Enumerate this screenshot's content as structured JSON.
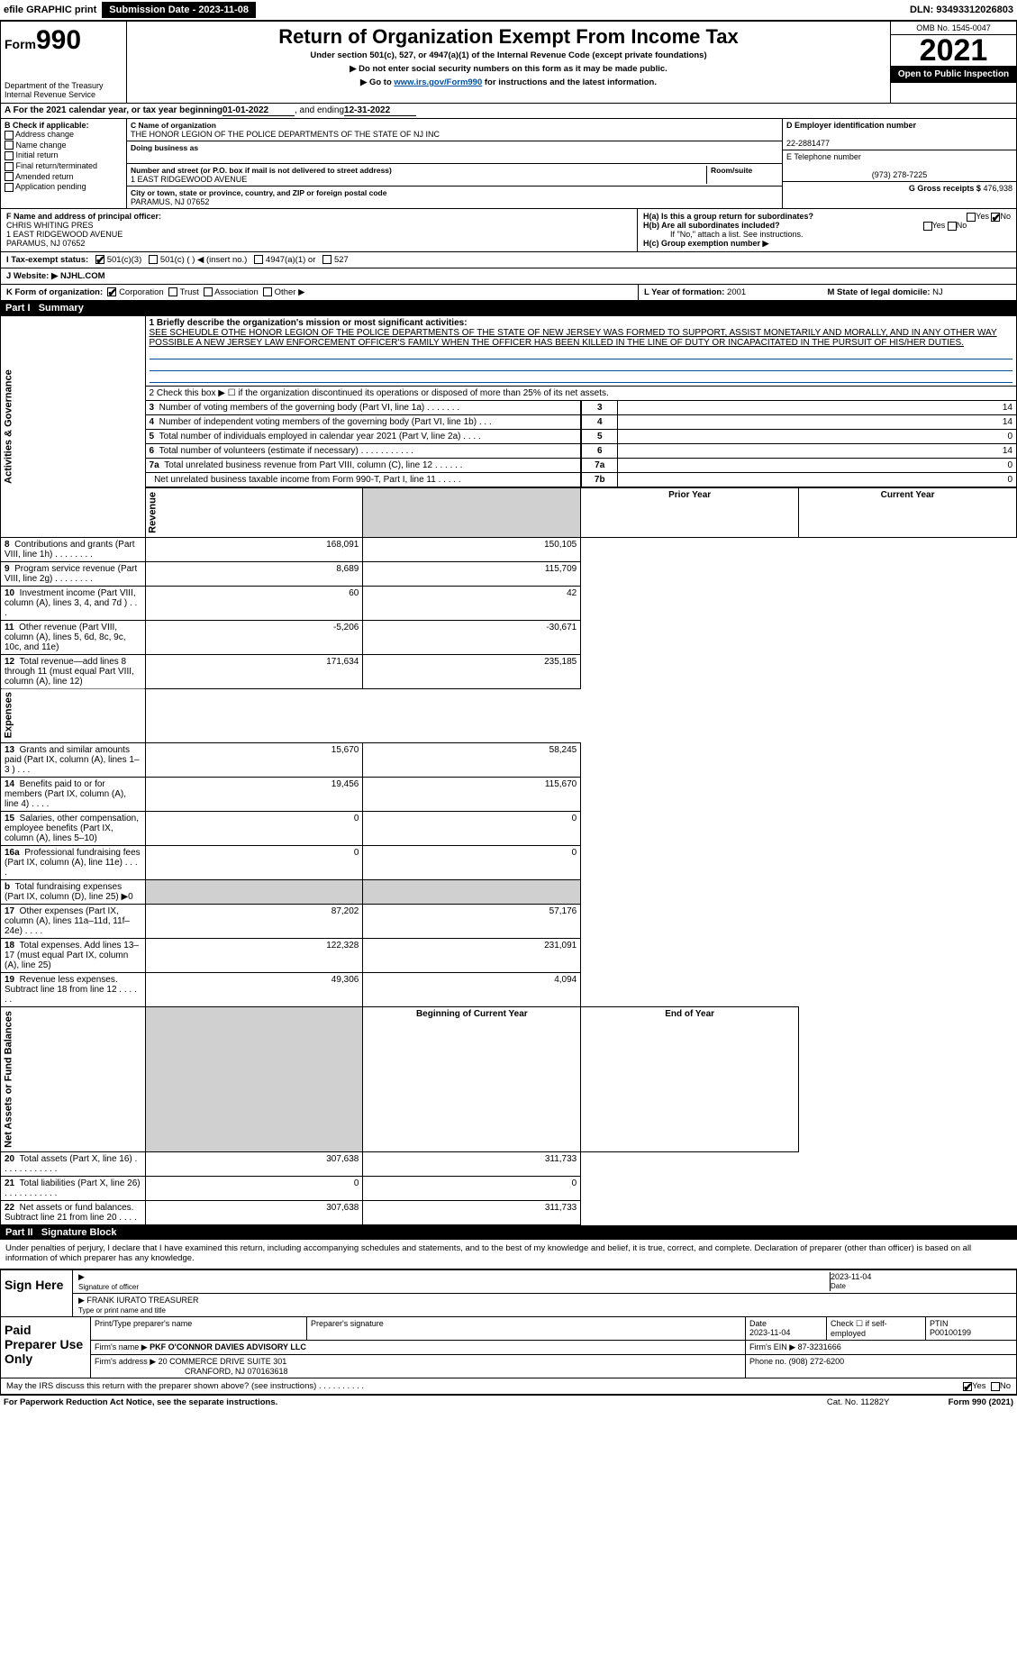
{
  "topbar": {
    "efile": "efile GRAPHIC print",
    "submission_btn": "Submission Date - 2023-11-08",
    "dln": "DLN: 93493312026803"
  },
  "header": {
    "form_word": "Form",
    "form_num": "990",
    "dept": "Department of the Treasury",
    "irs": "Internal Revenue Service",
    "title": "Return of Organization Exempt From Income Tax",
    "sub1": "Under section 501(c), 527, or 4947(a)(1) of the Internal Revenue Code (except private foundations)",
    "sub2_pre": "▶ Do not enter social security numbers on this form as it may be made public.",
    "sub3_pre": "▶ Go to ",
    "sub3_link": "www.irs.gov/Form990",
    "sub3_post": " for instructions and the latest information.",
    "omb": "OMB No. 1545-0047",
    "year": "2021",
    "open": "Open to Public Inspection"
  },
  "rowA": {
    "text_pre": "A For the 2021 calendar year, or tax year beginning ",
    "begin": "01-01-2022",
    "mid": " , and ending ",
    "end": "12-31-2022"
  },
  "colB": {
    "hdr": "B Check if applicable:",
    "items": [
      "Address change",
      "Name change",
      "Initial return",
      "Final return/terminated",
      "Amended return",
      "Application pending"
    ]
  },
  "colC": {
    "name_lbl": "C Name of organization",
    "name": "THE HONOR LEGION OF THE POLICE DEPARTMENTS OF THE STATE OF NJ INC",
    "dba_lbl": "Doing business as",
    "dba": "",
    "addr_lbl": "Number and street (or P.O. box if mail is not delivered to street address)",
    "room_lbl": "Room/suite",
    "addr": "1 EAST RIDGEWOOD AVENUE",
    "city_lbl": "City or town, state or province, country, and ZIP or foreign postal code",
    "city": "PARAMUS, NJ  07652"
  },
  "colD": {
    "ein_lbl": "D Employer identification number",
    "ein": "22-2881477",
    "tel_lbl": "E Telephone number",
    "tel": "(973) 278-7225",
    "gross_lbl": "G Gross receipts $",
    "gross": "476,938"
  },
  "rowF": {
    "lbl": "F Name and address of principal officer:",
    "name": "CHRIS WHITING PRES",
    "addr1": "1 EAST RIDGEWOOD AVENUE",
    "addr2": "PARAMUS, NJ  07652",
    "Ha": "H(a) Is this a group return for subordinates?",
    "Ha_yes": "Yes",
    "Ha_no": "No",
    "Hb": "H(b) Are all subordinates included?",
    "Hb_yes": "Yes",
    "Hb_no": "No",
    "Hb_note": "If \"No,\" attach a list. See instructions.",
    "Hc": "H(c) Group exemption number ▶"
  },
  "statusI": {
    "lbl": "I   Tax-exempt status:",
    "opt1": "501(c)(3)",
    "opt2": "501(c) (   ) ◀ (insert no.)",
    "opt3": "4947(a)(1) or",
    "opt4": "527"
  },
  "rowJ": {
    "lbl": "J   Website: ▶",
    "val": "NJHL.COM"
  },
  "rowK": {
    "lbl": "K Form of organization:",
    "opts": [
      "Corporation",
      "Trust",
      "Association",
      "Other ▶"
    ],
    "L_lbl": "L Year of formation:",
    "L_val": "2001",
    "M_lbl": "M State of legal domicile:",
    "M_val": "NJ"
  },
  "part1": {
    "hdr_part": "Part I",
    "hdr_title": "Summary",
    "sections": {
      "gov": "Activities & Governance",
      "rev": "Revenue",
      "exp": "Expenses",
      "net": "Net Assets or Fund Balances"
    },
    "line1_lbl": "1  Briefly describe the organization's mission or most significant activities:",
    "line1_txt": "SEE SCHEUDLE OTHE HONOR LEGION OF THE POLICE DEPARTMENTS OF THE STATE OF NEW JERSEY WAS FORMED TO SUPPORT, ASSIST MONETARILY AND MORALLY, AND IN ANY OTHER WAY POSSIBLE A NEW JERSEY LAW ENFORCEMENT OFFICER'S FAMILY WHEN THE OFFICER HAS BEEN KILLED IN THE LINE OF DUTY OR INCAPACITATED IN THE PURSUIT OF HIS/HER DUTIES.",
    "line2": "2  Check this box ▶ ☐ if the organization discontinued its operations or disposed of more than 25% of its net assets.",
    "gov_rows": [
      {
        "n": "3",
        "d": "Number of voting members of the governing body (Part VI, line 1a)  .   .   .   .   .   .   .",
        "box": "3",
        "v": "14"
      },
      {
        "n": "4",
        "d": "Number of independent voting members of the governing body (Part VI, line 1b)   .   .   .",
        "box": "4",
        "v": "14"
      },
      {
        "n": "5",
        "d": "Total number of individuals employed in calendar year 2021 (Part V, line 2a)   .   .   .   .",
        "box": "5",
        "v": "0"
      },
      {
        "n": "6",
        "d": "Total number of volunteers (estimate if necessary)   .   .   .   .   .   .   .   .   .   .   .",
        "box": "6",
        "v": "14"
      },
      {
        "n": "7a",
        "d": "Total unrelated business revenue from Part VIII, column (C), line 12   .   .   .   .   .   .",
        "box": "7a",
        "v": "0"
      },
      {
        "n": "",
        "d": "Net unrelated business taxable income from Form 990-T, Part I, line 11   .   .   .   .   .",
        "box": "7b",
        "v": "0"
      }
    ],
    "yr_hdr_prior": "Prior Year",
    "yr_hdr_curr": "Current Year",
    "rev_rows": [
      {
        "n": "8",
        "d": "Contributions and grants (Part VIII, line 1h)   .   .   .   .   .   .   .   .",
        "p": "168,091",
        "c": "150,105"
      },
      {
        "n": "9",
        "d": "Program service revenue (Part VIII, line 2g)   .   .   .   .   .   .   .   .",
        "p": "8,689",
        "c": "115,709"
      },
      {
        "n": "10",
        "d": "Investment income (Part VIII, column (A), lines 3, 4, and 7d )   .   .   .",
        "p": "60",
        "c": "42"
      },
      {
        "n": "11",
        "d": "Other revenue (Part VIII, column (A), lines 5, 6d, 8c, 9c, 10c, and 11e)",
        "p": "-5,206",
        "c": "-30,671"
      },
      {
        "n": "12",
        "d": "Total revenue—add lines 8 through 11 (must equal Part VIII, column (A), line 12)",
        "p": "171,634",
        "c": "235,185"
      }
    ],
    "exp_rows": [
      {
        "n": "13",
        "d": "Grants and similar amounts paid (Part IX, column (A), lines 1–3 )   .   .   .",
        "p": "15,670",
        "c": "58,245"
      },
      {
        "n": "14",
        "d": "Benefits paid to or for members (Part IX, column (A), line 4)   .   .   .   .",
        "p": "19,456",
        "c": "115,670"
      },
      {
        "n": "15",
        "d": "Salaries, other compensation, employee benefits (Part IX, column (A), lines 5–10)",
        "p": "0",
        "c": "0"
      },
      {
        "n": "16a",
        "d": "Professional fundraising fees (Part IX, column (A), line 11e)   .   .   .   .",
        "p": "0",
        "c": "0"
      },
      {
        "n": "b",
        "d": "Total fundraising expenses (Part IX, column (D), line 25) ▶0",
        "p": "",
        "c": "",
        "shade": true
      },
      {
        "n": "17",
        "d": "Other expenses (Part IX, column (A), lines 11a–11d, 11f–24e)   .   .   .   .",
        "p": "87,202",
        "c": "57,176"
      },
      {
        "n": "18",
        "d": "Total expenses. Add lines 13–17 (must equal Part IX, column (A), line 25)",
        "p": "122,328",
        "c": "231,091"
      },
      {
        "n": "19",
        "d": "Revenue less expenses. Subtract line 18 from line 12   .   .   .   .   .   .",
        "p": "49,306",
        "c": "4,094"
      }
    ],
    "net_hdr_begin": "Beginning of Current Year",
    "net_hdr_end": "End of Year",
    "net_rows": [
      {
        "n": "20",
        "d": "Total assets (Part X, line 16)   .   .   .   .   .   .   .   .   .   .   .   .",
        "p": "307,638",
        "c": "311,733"
      },
      {
        "n": "21",
        "d": "Total liabilities (Part X, line 26)   .   .   .   .   .   .   .   .   .   .   .",
        "p": "0",
        "c": "0"
      },
      {
        "n": "22",
        "d": "Net assets or fund balances. Subtract line 21 from line 20   .   .   .   .",
        "p": "307,638",
        "c": "311,733"
      }
    ]
  },
  "part2": {
    "hdr_part": "Part II",
    "hdr_title": "Signature Block",
    "intro": "Under penalties of perjury, I declare that I have examined this return, including accompanying schedules and statements, and to the best of my knowledge and belief, it is true, correct, and complete. Declaration of preparer (other than officer) is based on all information of which preparer has any knowledge.",
    "sign_lbl": "Sign Here",
    "sig_date": "2023-11-04",
    "sig_of_officer": "Signature of officer",
    "date_lbl": "Date",
    "officer_name": "FRANK IURATO  TREASURER",
    "type_name_lbl": "Type or print name and title"
  },
  "paid": {
    "lbl": "Paid Preparer Use Only",
    "h_name": "Print/Type preparer's name",
    "h_sig": "Preparer's signature",
    "h_date": "Date",
    "h_self": "Check ☐ if self-employed",
    "h_ptin": "PTIN",
    "date": "2023-11-04",
    "ptin": "P00100199",
    "firm_name_lbl": "Firm's name    ▶",
    "firm_name": "PKF O'CONNOR DAVIES ADVISORY LLC",
    "firm_ein_lbl": "Firm's EIN ▶",
    "firm_ein": "87-3231666",
    "firm_addr_lbl": "Firm's address ▶",
    "firm_addr": "20 COMMERCE DRIVE SUITE 301",
    "firm_addr2": "CRANFORD, NJ  070163618",
    "phone_lbl": "Phone no.",
    "phone": "(908) 272-6200",
    "discuss": "May the IRS discuss this return with the preparer shown above? (see instructions)   .   .   .   .   .   .   .   .   .   .",
    "yes": "Yes",
    "no": "No"
  },
  "footer": {
    "pra": "For Paperwork Reduction Act Notice, see the separate instructions.",
    "cat": "Cat. No. 11282Y",
    "form": "Form 990 (2021)"
  }
}
